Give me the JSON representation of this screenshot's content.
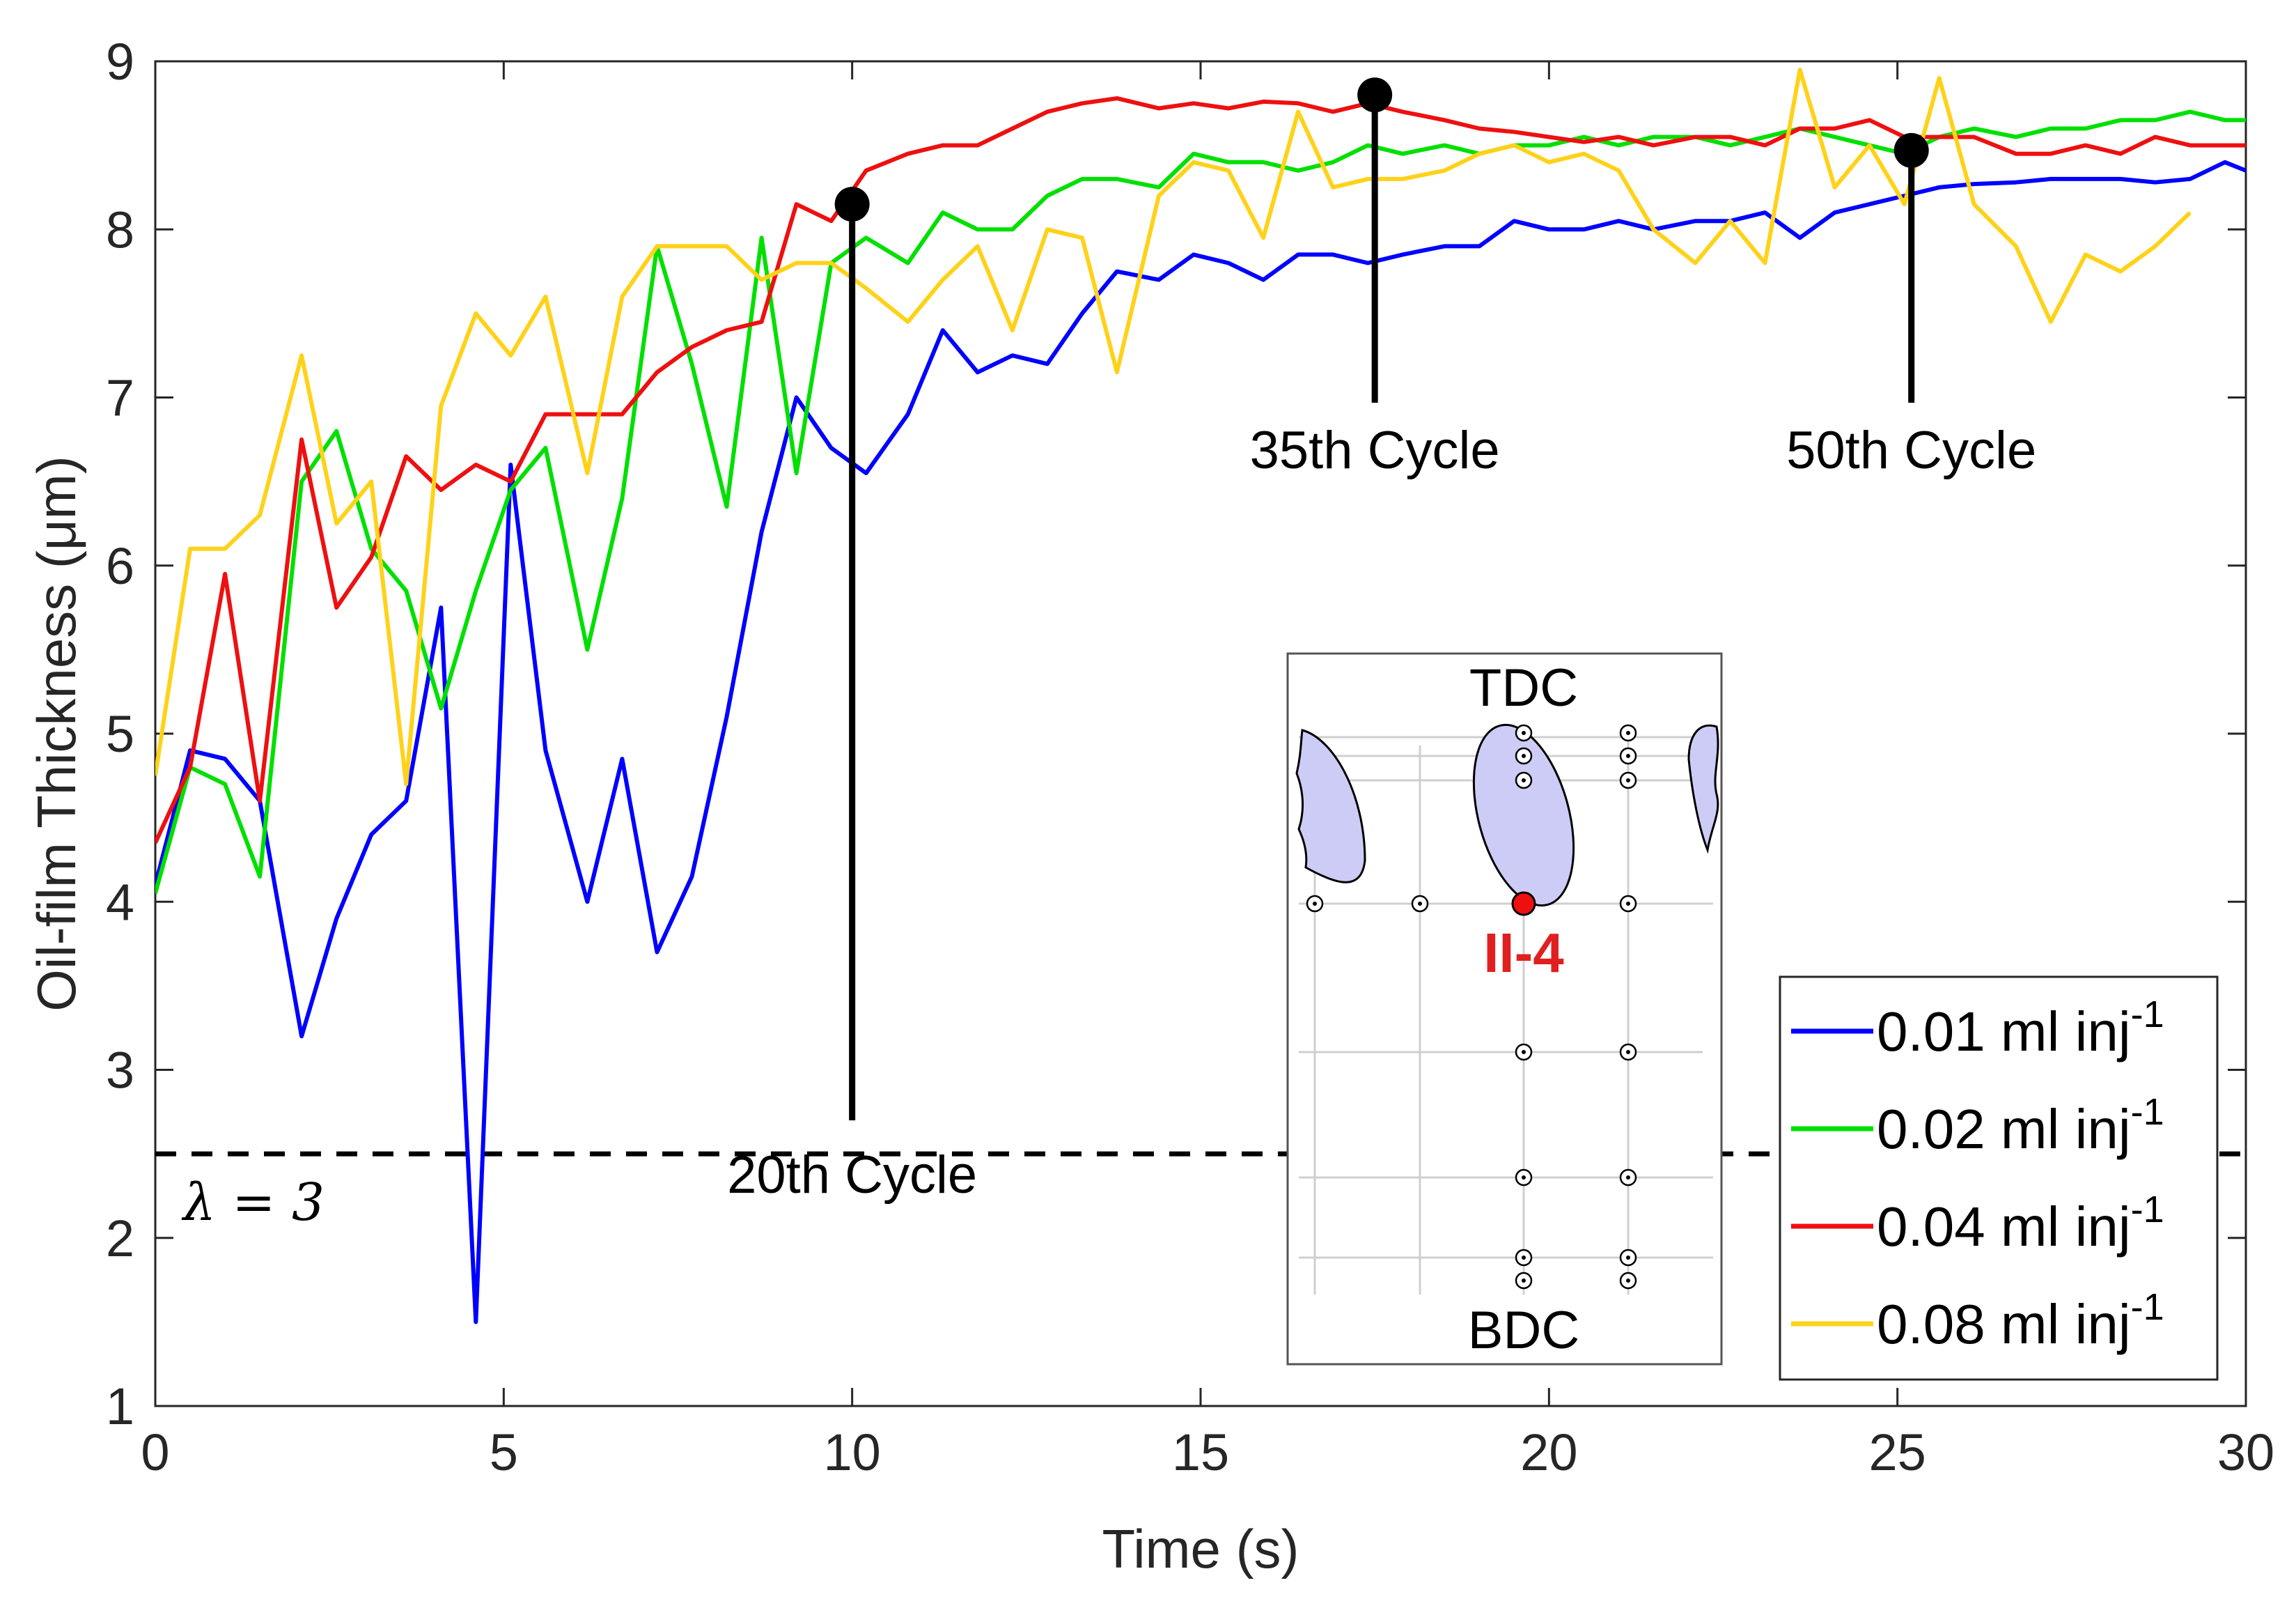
{
  "chart_data": {
    "type": "line",
    "title": "",
    "xlabel": "Time (s)",
    "ylabel": "Oil-film Thickness (μm)",
    "xlim": [
      0,
      30
    ],
    "ylim": [
      1,
      9
    ],
    "xticks": [
      0,
      5,
      10,
      15,
      20,
      25,
      30
    ],
    "yticks": [
      1,
      2,
      3,
      4,
      5,
      6,
      7,
      8,
      9
    ],
    "grid": false,
    "legend_position": "bottom-right",
    "series": [
      {
        "name": "0.01 ml inj",
        "superscript": "-1",
        "color": "#0000ff",
        "x": [
          0,
          0.5,
          1.0,
          1.5,
          2.1,
          2.6,
          3.1,
          3.6,
          4.1,
          4.6,
          5.1,
          5.6,
          6.2,
          6.7,
          7.2,
          7.7,
          8.2,
          8.7,
          9.2,
          9.7,
          10.2,
          10.8,
          11.3,
          11.8,
          12.3,
          12.8,
          13.3,
          13.8,
          14.4,
          14.9,
          15.4,
          15.9,
          16.4,
          16.9,
          17.4,
          17.9,
          18.5,
          19.0,
          19.5,
          20.0,
          20.5,
          21.0,
          21.5,
          22.1,
          22.6,
          23.1,
          23.6,
          24.1,
          24.6,
          25.1,
          25.6,
          26.1,
          26.7,
          27.2,
          27.7,
          28.2,
          28.7,
          29.2,
          29.7,
          30
        ],
        "values": [
          4.1,
          4.9,
          4.85,
          4.6,
          3.2,
          3.9,
          4.4,
          4.6,
          5.75,
          1.5,
          6.6,
          4.9,
          4.0,
          4.85,
          3.7,
          4.15,
          5.1,
          6.2,
          7.0,
          6.7,
          6.55,
          6.9,
          7.4,
          7.15,
          7.25,
          7.2,
          7.5,
          7.75,
          7.7,
          7.85,
          7.8,
          7.7,
          7.85,
          7.85,
          7.8,
          7.85,
          7.9,
          7.9,
          8.05,
          8.0,
          8.0,
          8.05,
          8.0,
          8.05,
          8.05,
          8.1,
          7.95,
          8.1,
          8.15,
          8.2,
          8.25,
          8.27,
          8.28,
          8.3,
          8.3,
          8.3,
          8.28,
          8.3,
          8.4,
          8.35
        ]
      },
      {
        "name": "0.02 ml inj",
        "superscript": "-1",
        "color": "#00e000",
        "x": [
          0,
          0.5,
          1.0,
          1.5,
          2.1,
          2.6,
          3.1,
          3.6,
          4.1,
          4.6,
          5.1,
          5.6,
          6.2,
          6.7,
          7.2,
          7.7,
          8.2,
          8.7,
          9.2,
          9.7,
          10.2,
          10.8,
          11.3,
          11.8,
          12.3,
          12.8,
          13.3,
          13.8,
          14.4,
          14.9,
          15.4,
          15.9,
          16.4,
          16.9,
          17.4,
          17.9,
          18.5,
          19.0,
          19.5,
          20.0,
          20.5,
          21.0,
          21.5,
          22.1,
          22.6,
          23.1,
          23.6,
          24.1,
          24.6,
          25.1,
          25.6,
          26.1,
          26.7,
          27.2,
          27.7,
          28.2,
          28.7,
          29.2,
          29.7,
          30
        ],
        "values": [
          4.05,
          4.8,
          4.7,
          4.15,
          6.5,
          6.8,
          6.1,
          5.85,
          5.15,
          5.85,
          6.45,
          6.7,
          5.5,
          6.4,
          7.9,
          7.2,
          6.35,
          7.95,
          6.55,
          7.8,
          7.95,
          7.8,
          8.1,
          8.0,
          8.0,
          8.2,
          8.3,
          8.3,
          8.25,
          8.45,
          8.4,
          8.4,
          8.35,
          8.4,
          8.5,
          8.45,
          8.5,
          8.45,
          8.5,
          8.5,
          8.55,
          8.5,
          8.55,
          8.55,
          8.5,
          8.55,
          8.6,
          8.55,
          8.5,
          8.45,
          8.55,
          8.6,
          8.55,
          8.6,
          8.6,
          8.65,
          8.65,
          8.7,
          8.65,
          8.65
        ]
      },
      {
        "name": "0.04 ml inj",
        "superscript": "-1",
        "color": "#ee1010",
        "x": [
          0,
          0.5,
          1.0,
          1.5,
          2.1,
          2.6,
          3.1,
          3.6,
          4.1,
          4.6,
          5.1,
          5.6,
          6.2,
          6.7,
          7.2,
          7.7,
          8.2,
          8.7,
          9.2,
          9.7,
          10.2,
          10.8,
          11.3,
          11.8,
          12.3,
          12.8,
          13.3,
          13.8,
          14.4,
          14.9,
          15.4,
          15.9,
          16.4,
          16.9,
          17.4,
          17.9,
          18.5,
          19.0,
          19.5,
          20.0,
          20.5,
          21.0,
          21.5,
          22.1,
          22.6,
          23.1,
          23.6,
          24.1,
          24.6,
          25.1,
          25.6,
          26.1,
          26.7,
          27.2,
          27.7,
          28.2,
          28.7,
          29.2,
          29.7,
          30
        ],
        "values": [
          4.35,
          4.8,
          5.95,
          4.6,
          6.75,
          5.75,
          6.05,
          6.65,
          6.45,
          6.6,
          6.5,
          6.9,
          6.9,
          6.9,
          7.15,
          7.3,
          7.4,
          7.45,
          8.15,
          8.05,
          8.35,
          8.45,
          8.5,
          8.5,
          8.6,
          8.7,
          8.75,
          8.78,
          8.72,
          8.75,
          8.72,
          8.76,
          8.75,
          8.7,
          8.75,
          8.7,
          8.65,
          8.6,
          8.58,
          8.55,
          8.52,
          8.55,
          8.5,
          8.55,
          8.55,
          8.5,
          8.6,
          8.6,
          8.65,
          8.55,
          8.55,
          8.55,
          8.45,
          8.45,
          8.5,
          8.45,
          8.55,
          8.5,
          8.5,
          8.5
        ]
      },
      {
        "name": "0.08 ml inj",
        "superscript": "-1",
        "color": "#ffd21a",
        "x": [
          0,
          0.5,
          1.0,
          1.5,
          2.1,
          2.6,
          3.1,
          3.6,
          4.1,
          4.6,
          5.1,
          5.6,
          6.2,
          6.7,
          7.2,
          7.7,
          8.2,
          8.7,
          9.2,
          9.7,
          10.2,
          10.8,
          11.3,
          11.8,
          12.3,
          12.8,
          13.3,
          13.8,
          14.4,
          14.9,
          15.4,
          15.9,
          16.4,
          16.9,
          17.4,
          17.9,
          18.5,
          19.0,
          19.5,
          20.0,
          20.5,
          21.0,
          21.5,
          22.1,
          22.6,
          23.1,
          23.6,
          24.1,
          24.6,
          25.1,
          25.6,
          26.1,
          26.7,
          27.2,
          27.7,
          28.2,
          28.7,
          29.2
        ],
        "values": [
          4.75,
          6.1,
          6.1,
          6.3,
          7.25,
          6.25,
          6.5,
          4.7,
          6.95,
          7.5,
          7.25,
          7.6,
          6.55,
          7.6,
          7.9,
          7.9,
          7.9,
          7.7,
          7.8,
          7.8,
          7.65,
          7.45,
          7.7,
          7.9,
          7.4,
          8.0,
          7.95,
          7.15,
          8.2,
          8.4,
          8.35,
          7.95,
          8.7,
          8.25,
          8.3,
          8.3,
          8.35,
          8.45,
          8.5,
          8.4,
          8.45,
          8.35,
          8.0,
          7.8,
          8.05,
          7.8,
          8.95,
          8.25,
          8.5,
          8.15,
          8.9,
          8.15,
          7.9,
          7.45,
          7.85,
          7.75,
          7.9,
          8.1
        ]
      }
    ],
    "reference_line": {
      "y": 2.5,
      "label": "λ = 3",
      "style": "dashed"
    },
    "annotations": [
      {
        "label": "20th Cycle",
        "x": 10.0,
        "y": 8.15
      },
      {
        "label": "35th Cycle",
        "x": 17.5,
        "y": 8.8
      },
      {
        "label": "50th Cycle",
        "x": 25.2,
        "y": 8.47
      }
    ]
  },
  "inset": {
    "top_label": "TDC",
    "bottom_label": "BDC",
    "probe_label": "II-4"
  }
}
